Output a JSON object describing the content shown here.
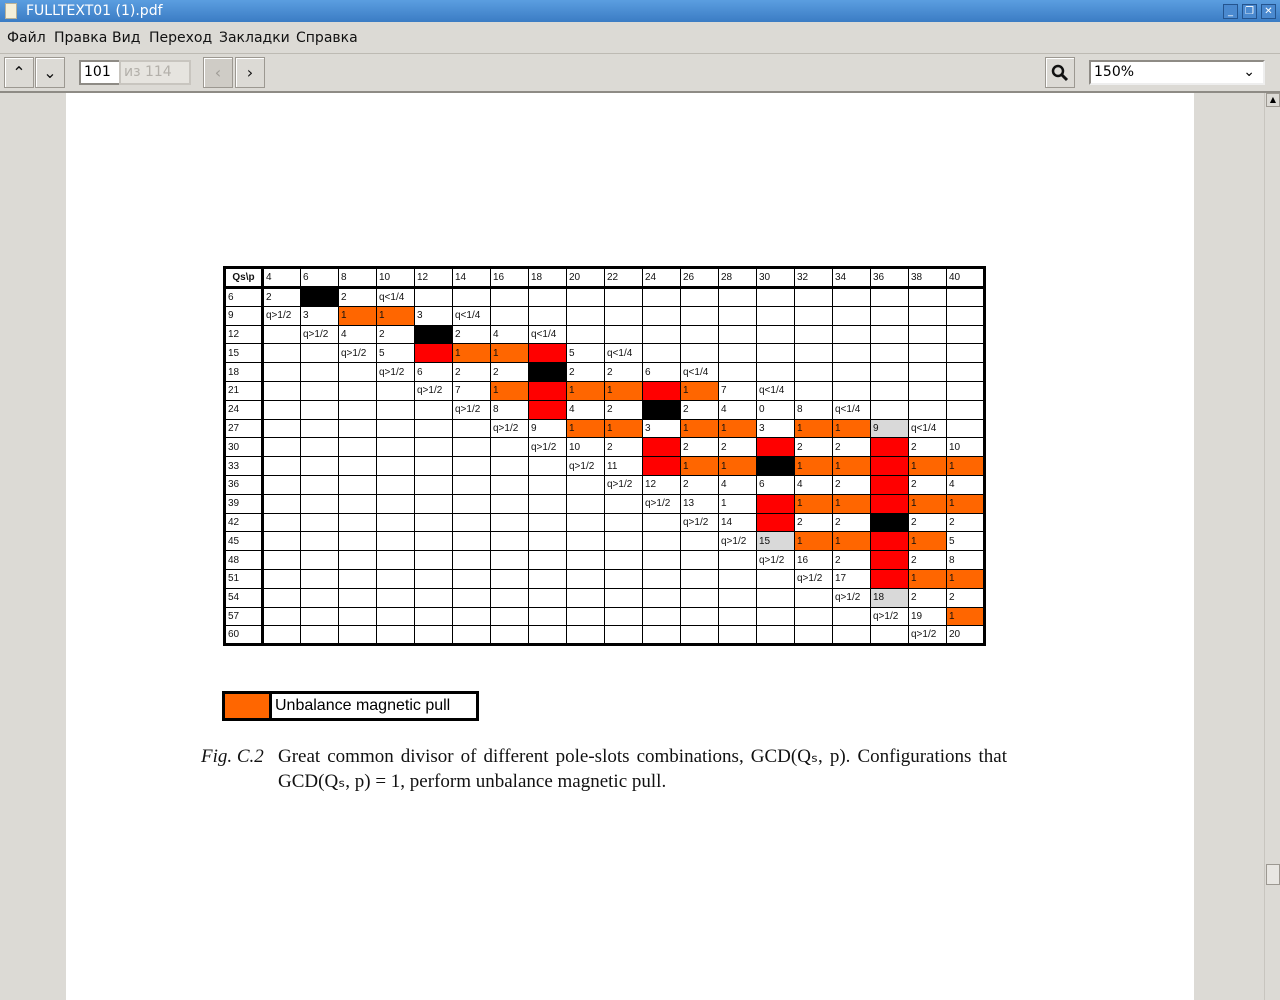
{
  "window": {
    "title": "FULLTEXT01 (1).pdf",
    "minimize": "_",
    "restore": "❐",
    "close": "✕"
  },
  "menu": [
    "Файл",
    "Правка",
    "Вид",
    "Переход",
    "Закладки",
    "Справка"
  ],
  "toolbar": {
    "prev_page": "⌃",
    "next_page": "⌄",
    "page_value": "101",
    "page_total": "из 114",
    "back": "‹",
    "forward": "›",
    "zoom_value": "150%",
    "zoom_chevron": "⌄",
    "search_icon": "magnifier-icon"
  },
  "colors": {
    "orange": "#ff6600",
    "red": "#ff0000",
    "black": "#000000",
    "gray": "#d9d9d9",
    "white": "#ffffff"
  },
  "table": {
    "corner": "Qs\\p",
    "columns": [
      "4",
      "6",
      "8",
      "10",
      "12",
      "14",
      "16",
      "18",
      "20",
      "22",
      "24",
      "26",
      "28",
      "30",
      "32",
      "34",
      "36",
      "38",
      "40"
    ],
    "fill_codes": {
      ".": "white",
      "o": "orange",
      "r": "red",
      "k": "black",
      "g": "gray"
    },
    "rows": [
      {
        "qs": "6",
        "fills": ".k.................",
        "values": [
          "2",
          "",
          "2",
          "q<1/4"
        ]
      },
      {
        "qs": "9",
        "fills": "..oo...............",
        "values": [
          "q>1/2",
          "3",
          "1",
          "1",
          "3",
          "q<1/4"
        ]
      },
      {
        "qs": "12",
        "fills": "....k..............",
        "values": [
          "",
          "q>1/2",
          "4",
          "2",
          "",
          "2",
          "4",
          "q<1/4"
        ]
      },
      {
        "qs": "15",
        "fills": "....roor...........",
        "values": [
          "",
          "",
          "q>1/2",
          "5",
          "",
          "1",
          "1",
          "",
          "5",
          "q<1/4"
        ]
      },
      {
        "qs": "18",
        "fills": ".......k...........",
        "values": [
          "",
          "",
          "",
          "q>1/2",
          "6",
          "2",
          "2",
          "",
          "2",
          "2",
          "6",
          "q<1/4"
        ]
      },
      {
        "qs": "21",
        "fills": "......orooro.......",
        "values": [
          "",
          "",
          "",
          "",
          "q>1/2",
          "7",
          "1",
          "",
          "1",
          "1",
          "",
          "1",
          "7",
          "q<1/4"
        ]
      },
      {
        "qs": "24",
        "fills": ".......r..k........",
        "values": [
          "",
          "",
          "",
          "",
          "",
          "q>1/2",
          "8",
          "",
          "4",
          "2",
          "",
          "2",
          "4",
          "0",
          "8",
          "q<1/4"
        ]
      },
      {
        "qs": "27",
        "fills": "........oo.oo.oog..",
        "values": [
          "",
          "",
          "",
          "",
          "",
          "",
          "q>1/2",
          "9",
          "1",
          "1",
          "3",
          "1",
          "1",
          "3",
          "1",
          "1",
          "9",
          "q<1/4",
          ""
        ]
      },
      {
        "qs": "30",
        "fills": "..........r..r..r..",
        "values": [
          "",
          "",
          "",
          "",
          "",
          "",
          "",
          "q>1/2",
          "10",
          "2",
          "",
          "2",
          "2",
          "",
          "2",
          "2",
          "",
          "2",
          "10"
        ]
      },
      {
        "qs": "33",
        "fills": "..........rookooroo",
        "values": [
          "",
          "",
          "",
          "",
          "",
          "",
          "",
          "",
          "q>1/2",
          "11",
          "",
          "1",
          "1",
          "",
          "1",
          "1",
          "",
          "1",
          "1"
        ]
      },
      {
        "qs": "36",
        "fills": "................r..",
        "values": [
          "",
          "",
          "",
          "",
          "",
          "",
          "",
          "",
          "",
          "q>1/2",
          "12",
          "2",
          "4",
          "6",
          "4",
          "2",
          "",
          "2",
          "4"
        ]
      },
      {
        "qs": "39",
        "fills": ".............rooroo",
        "values": [
          "",
          "",
          "",
          "",
          "",
          "",
          "",
          "",
          "",
          "",
          "q>1/2",
          "13",
          "1",
          "",
          "1",
          "1",
          "",
          "1",
          "1"
        ]
      },
      {
        "qs": "42",
        "fills": ".............r..k..",
        "values": [
          "",
          "",
          "",
          "",
          "",
          "",
          "",
          "",
          "",
          "",
          "",
          "q>1/2",
          "14",
          "",
          "2",
          "2",
          "",
          "2",
          "2"
        ]
      },
      {
        "qs": "45",
        "fills": ".............gooro.",
        "values": [
          "",
          "",
          "",
          "",
          "",
          "",
          "",
          "",
          "",
          "",
          "",
          "",
          "q>1/2",
          "15",
          "1",
          "1",
          "",
          "1",
          "5"
        ]
      },
      {
        "qs": "48",
        "fills": "................r..",
        "values": [
          "",
          "",
          "",
          "",
          "",
          "",
          "",
          "",
          "",
          "",
          "",
          "",
          "",
          "q>1/2",
          "16",
          "2",
          "",
          "2",
          "8"
        ]
      },
      {
        "qs": "51",
        "fills": "................roo",
        "values": [
          "",
          "",
          "",
          "",
          "",
          "",
          "",
          "",
          "",
          "",
          "",
          "",
          "",
          "",
          "q>1/2",
          "17",
          "",
          "1",
          "1"
        ]
      },
      {
        "qs": "54",
        "fills": "................g..",
        "values": [
          "",
          "",
          "",
          "",
          "",
          "",
          "",
          "",
          "",
          "",
          "",
          "",
          "",
          "",
          "",
          "q>1/2",
          "18",
          "2",
          "2"
        ]
      },
      {
        "qs": "57",
        "fills": "..................o",
        "values": [
          "",
          "",
          "",
          "",
          "",
          "",
          "",
          "",
          "",
          "",
          "",
          "",
          "",
          "",
          "",
          "",
          "q>1/2",
          "19",
          "1"
        ]
      },
      {
        "qs": "60",
        "fills": "...................",
        "values": [
          "",
          "",
          "",
          "",
          "",
          "",
          "",
          "",
          "",
          "",
          "",
          "",
          "",
          "",
          "",
          "",
          "",
          "q>1/2",
          "20"
        ]
      }
    ]
  },
  "legend": {
    "label": "Unbalance magnetic pull",
    "color": "#ff6600"
  },
  "caption": {
    "label": "Fig. C.2",
    "text": "Great common divisor of different pole-slots combinations, GCD(Qₛ, p). Configurations that GCD(Qₛ, p) = 1, perform unbalance magnetic pull."
  }
}
